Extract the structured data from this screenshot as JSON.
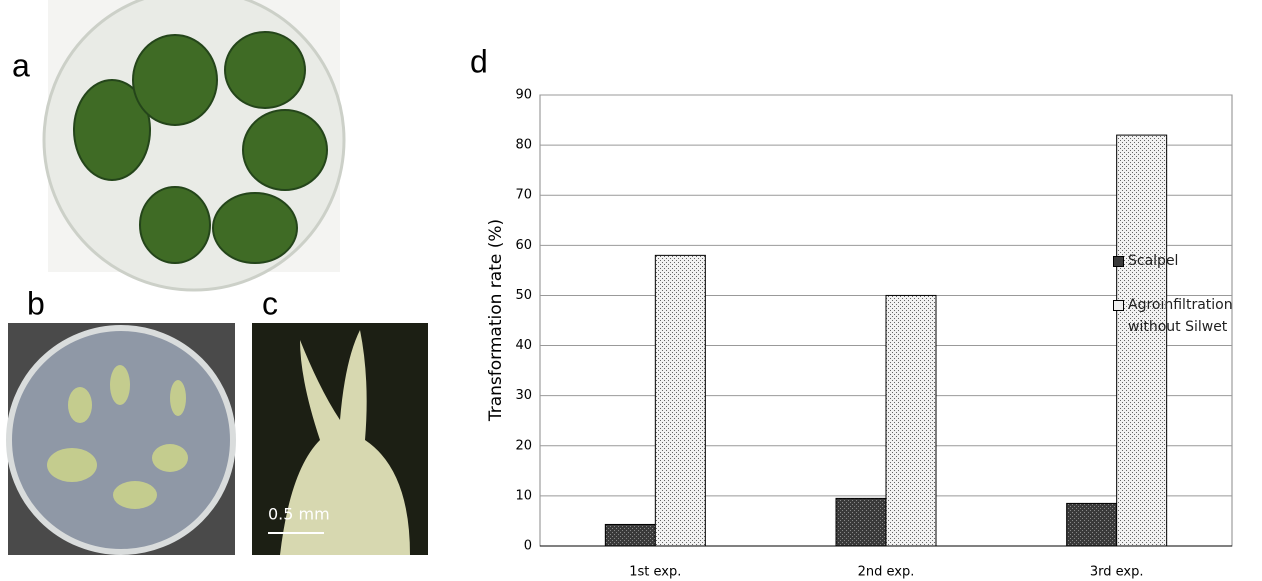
{
  "panels": {
    "a": "a",
    "b": "b",
    "c": "c",
    "d": "d"
  },
  "scale_bar": "0.5 mm",
  "chart_data": {
    "type": "bar",
    "ylabel": "Transformation rate (%)",
    "categories": [
      "1st exp.",
      "2nd exp.",
      "3rd exp."
    ],
    "series": [
      {
        "name": "Scalpel",
        "color": "#3a3a3a",
        "values": [
          4.3,
          9.5,
          8.5
        ]
      },
      {
        "name": "Agroinfiltration without Silwet",
        "color": "#efefef",
        "values": [
          58,
          50,
          82
        ]
      }
    ],
    "ylim": [
      0,
      90
    ],
    "yticks": [
      0,
      10,
      20,
      30,
      40,
      50,
      60,
      70,
      80,
      90
    ],
    "grid": true,
    "legend": "right"
  }
}
